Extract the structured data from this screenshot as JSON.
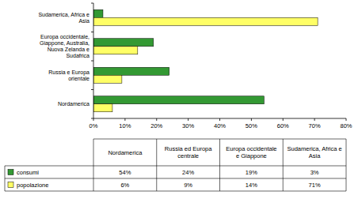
{
  "chart_data": {
    "type": "bar",
    "orientation": "horizontal",
    "grid": false,
    "categories": [
      "Sudamerica, Africa e Asia",
      "Europa occidentale, Giappone, Australia, Nuova Zelanda e Sudafrica",
      "Russia e Europa orientale",
      "Nordamerica"
    ],
    "series": [
      {
        "name": "consumi",
        "color": "#339933",
        "values": [
          3,
          19,
          24,
          54
        ]
      },
      {
        "name": "popolazione",
        "color": "#ffff66",
        "values": [
          71,
          14,
          9,
          6
        ]
      }
    ],
    "xlim": [
      0,
      80
    ],
    "xticks": [
      {
        "value": 0,
        "label": "0%"
      },
      {
        "value": 10,
        "label": "10%"
      },
      {
        "value": 20,
        "label": "20%"
      },
      {
        "value": 30,
        "label": "30%"
      },
      {
        "value": 40,
        "label": "40%"
      },
      {
        "value": 50,
        "label": "50%"
      },
      {
        "value": 60,
        "label": "60%"
      },
      {
        "value": 70,
        "label": "70%"
      },
      {
        "value": 80,
        "label": "80%"
      }
    ]
  },
  "table": {
    "columns": [
      "Nordamerica",
      "Russia ed Europa centrale",
      "Europa occidentale e Giappone",
      "Sudamerica, Africa e Asia"
    ],
    "rows": [
      [
        "54%",
        "24%",
        "19%",
        "3%"
      ],
      [
        "6%",
        "9%",
        "14%",
        "71%"
      ]
    ]
  }
}
